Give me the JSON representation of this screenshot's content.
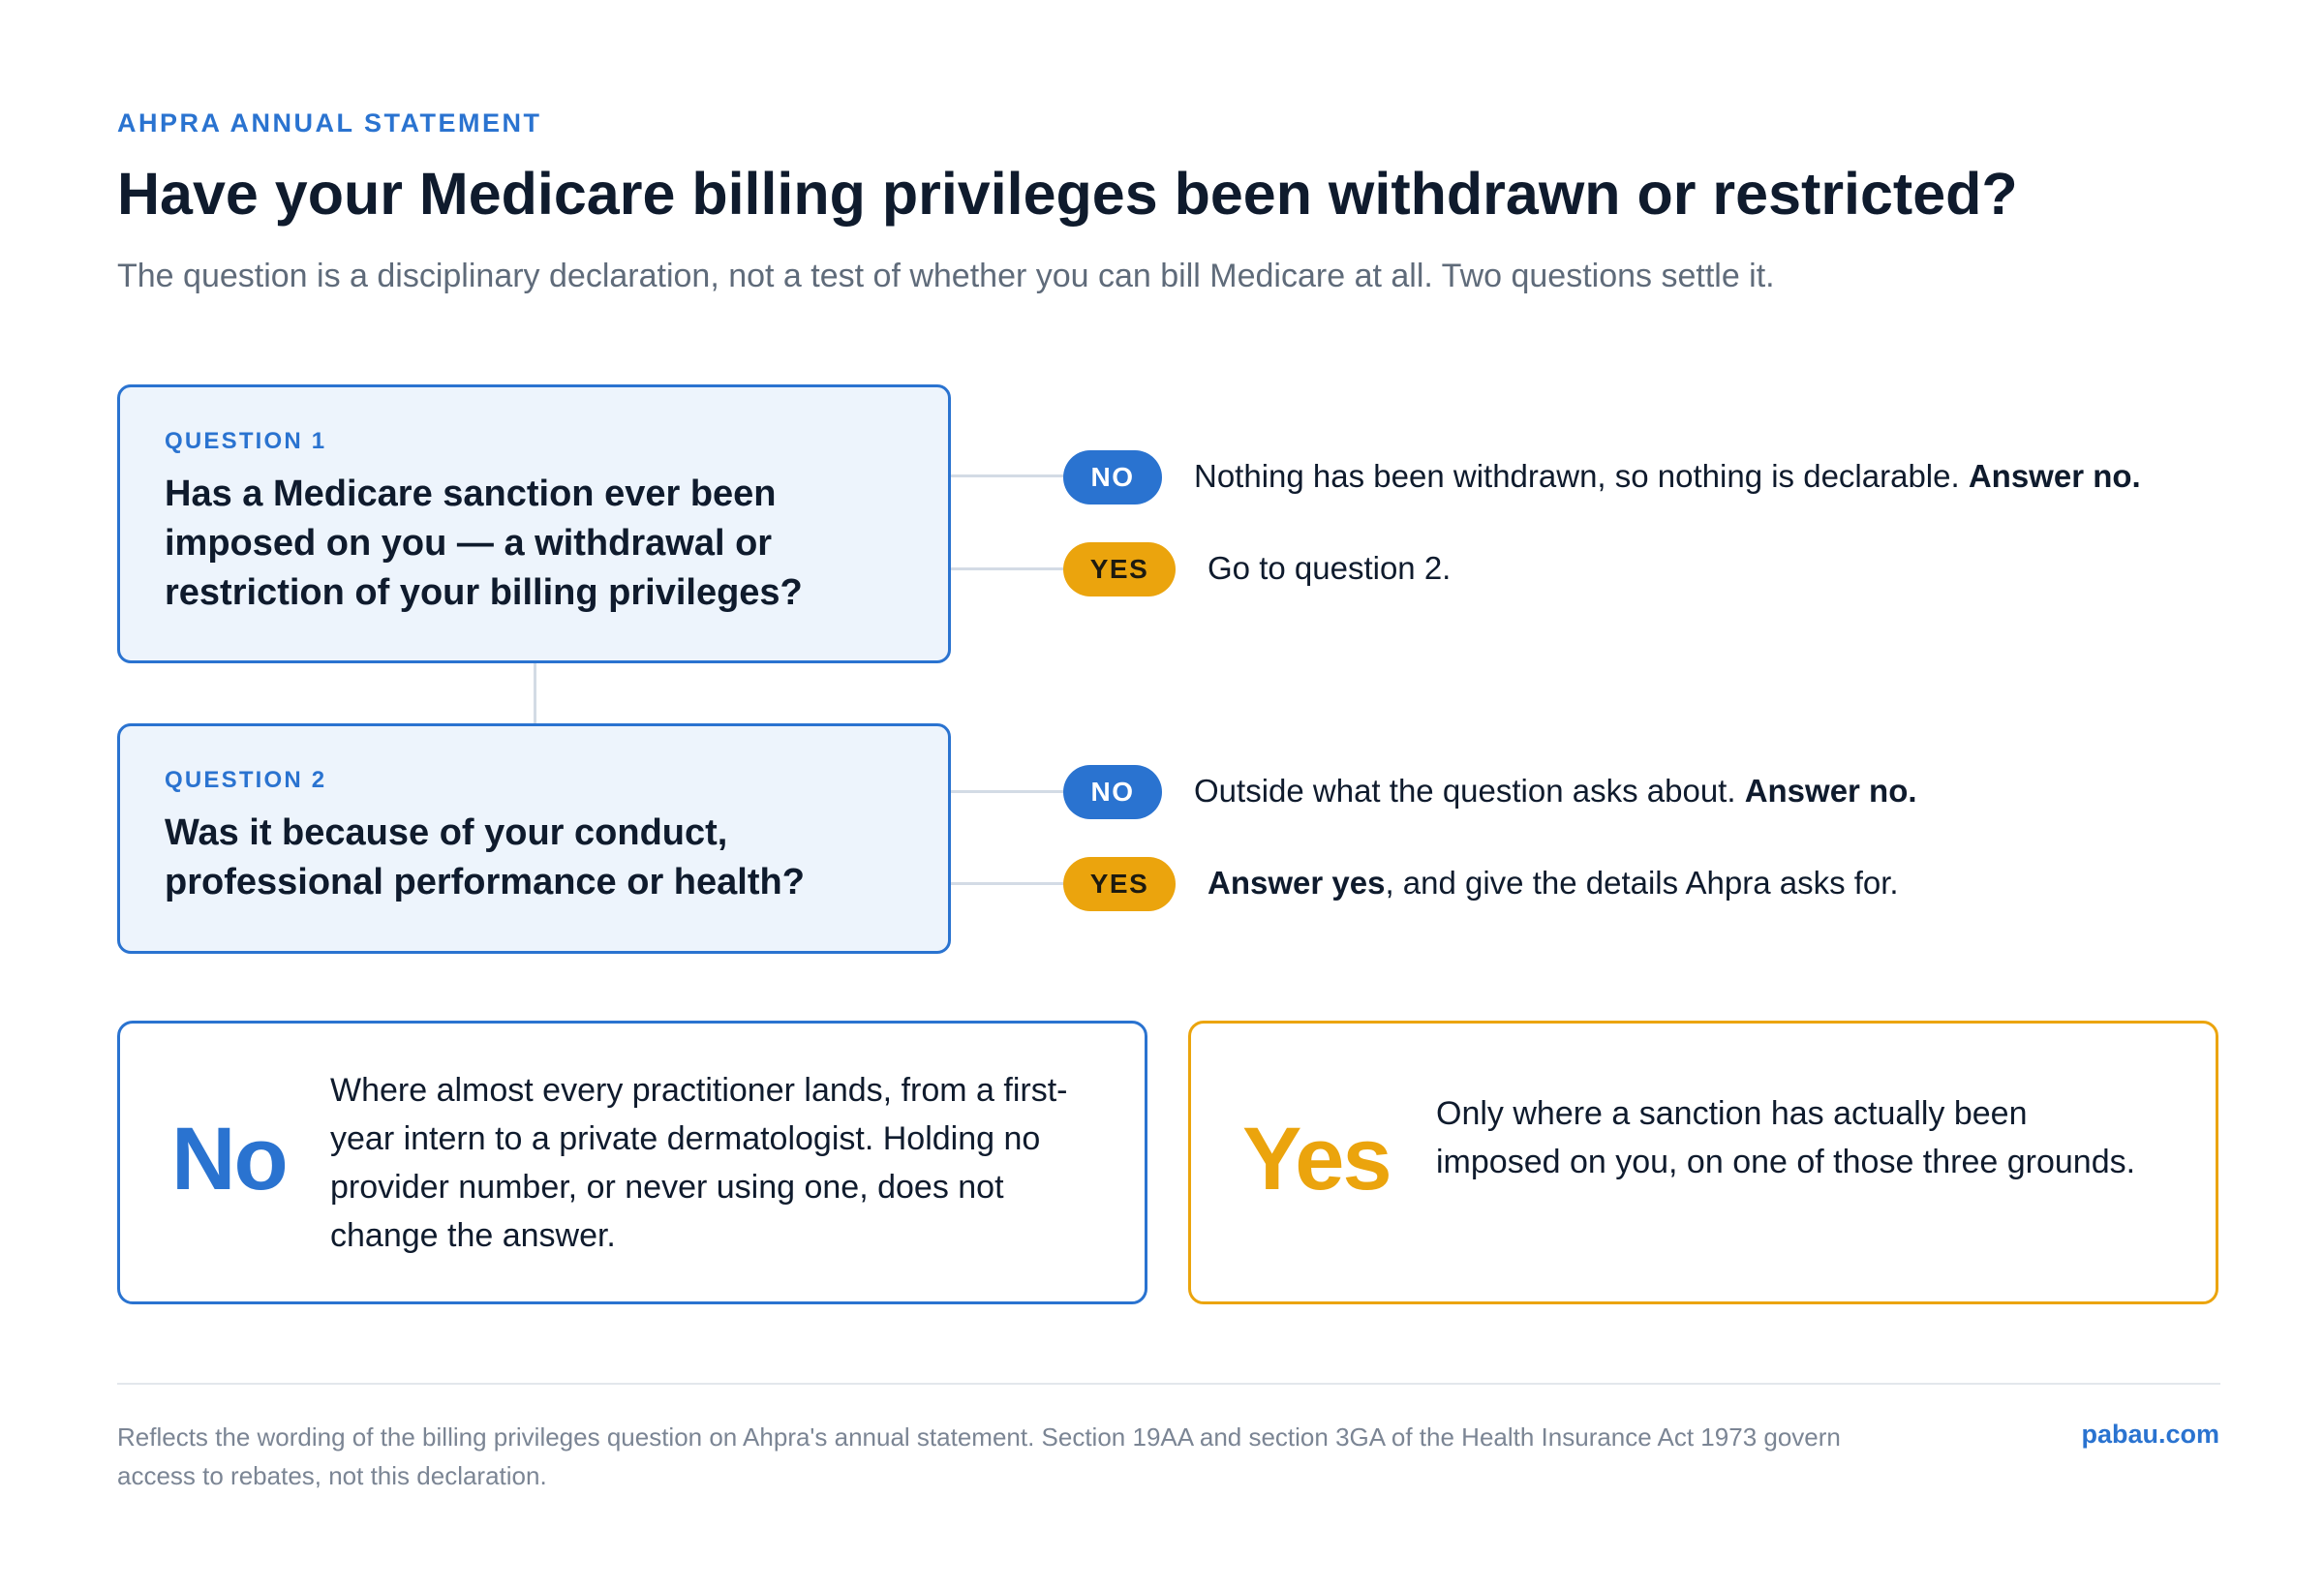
{
  "header": {
    "eyebrow": "AHPRA ANNUAL STATEMENT",
    "title": "Have your Medicare billing privileges been withdrawn or restricted?",
    "subtitle": "The question is a disciplinary declaration, not a test of whether you can bill Medicare at all. Two questions settle it."
  },
  "questions": [
    {
      "label": "QUESTION 1",
      "text_lines": [
        "Has a Medicare sanction ever been",
        "imposed on you — a withdrawal or",
        "restriction of your billing privileges?"
      ],
      "no": {
        "pill": "NO",
        "text": "Nothing has been withdrawn, so nothing is declarable. ",
        "bold": "Answer no."
      },
      "yes": {
        "pill": "YES",
        "text": "Go to question 2."
      }
    },
    {
      "label": "QUESTION 2",
      "text_lines": [
        "Was it because of your conduct,",
        "professional performance or health?"
      ],
      "no": {
        "pill": "NO",
        "text": "Outside what the question asks about. ",
        "bold": "Answer no."
      },
      "yes": {
        "pill": "YES",
        "bold": "Answer yes",
        "text": ", and give the details Ahpra asks for."
      }
    }
  ],
  "outcomes": {
    "no": {
      "word": "No",
      "text": "Where almost every practitioner lands, from a first-year intern to a private dermatologist. Holding no provider number, or never using one, does not change the answer."
    },
    "yes": {
      "word": "Yes",
      "text": "Only where a sanction has actually been imposed on you, on one of those three grounds."
    }
  },
  "footer": {
    "note": "Reflects the wording of the billing privileges question on Ahpra's annual statement. Section 19AA and section 3GA of the Health Insurance Act 1973 govern access to rebates, not this declaration.",
    "brand": "pabau.com"
  },
  "colors": {
    "accent_blue": "#2a73d0",
    "accent_amber": "#eba40d",
    "box_fill": "#edf4fc",
    "connector": "#d3dbe5"
  }
}
